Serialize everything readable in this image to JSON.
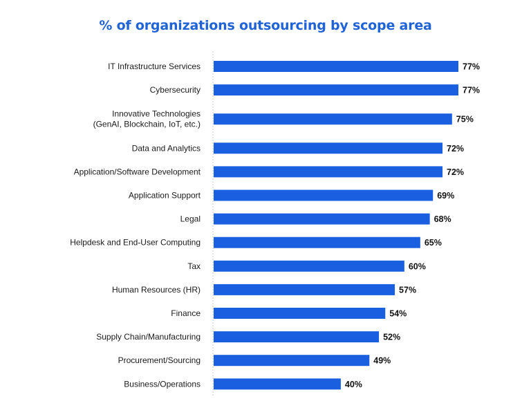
{
  "colors": {
    "title": "#1f63d6",
    "bar": "#1a5fe0",
    "axis": "#c8c8c8"
  },
  "chart_data": {
    "type": "bar",
    "orientation": "horizontal",
    "title": "% of organizations outsourcing by scope area",
    "value_suffix": "%",
    "xlim": [
      0,
      77
    ],
    "grid": false,
    "categories": [
      [
        "IT Infrastructure Services"
      ],
      [
        "Cybersecurity"
      ],
      [
        "Innovative Technologies",
        "(GenAI, Blockchain, IoT, etc.)"
      ],
      [
        "Data and Analytics"
      ],
      [
        "Application/Software Development"
      ],
      [
        "Application Support"
      ],
      [
        "Legal"
      ],
      [
        "Helpdesk and End-User Computing"
      ],
      [
        "Tax"
      ],
      [
        "Human Resources (HR)"
      ],
      [
        "Finance"
      ],
      [
        "Supply Chain/Manufacturing"
      ],
      [
        "Procurement/Sourcing"
      ],
      [
        "Business/Operations"
      ]
    ],
    "values": [
      77,
      77,
      75,
      72,
      72,
      69,
      68,
      65,
      60,
      57,
      54,
      52,
      49,
      40
    ]
  }
}
